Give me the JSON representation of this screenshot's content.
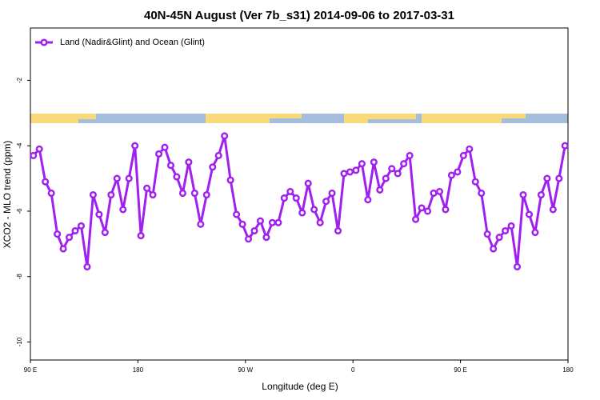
{
  "chart_data": {
    "type": "line",
    "title": "40N-45N August (Ver 7b_s31)   2014-09-06 to 2017-03-31",
    "xlabel": "Longitude (deg E)",
    "ylabel": "XCO2 - MLO trend (ppm)",
    "legend": "upper left",
    "xlim": [
      90,
      540
    ],
    "ylim": [
      -10.55,
      -0.4
    ],
    "xticks": [
      {
        "value": 90,
        "label": "90 E"
      },
      180,
      {
        "value": 270,
        "label": "90 W"
      },
      {
        "value": 360,
        "label": "0"
      },
      {
        "value": 450,
        "label": "90 E"
      },
      {
        "value": 540,
        "label": "180"
      }
    ],
    "yticks": [
      -2,
      -4,
      -6,
      -8,
      -10
    ],
    "x": [
      92.5,
      97.5,
      102.5,
      107.5,
      112.5,
      117.5,
      122.5,
      127.5,
      132.5,
      137.5,
      142.5,
      147.5,
      152.5,
      157.5,
      162.5,
      167.5,
      172.5,
      177.5,
      182.5,
      187.5,
      192.5,
      197.5,
      202.5,
      207.5,
      212.5,
      217.5,
      222.5,
      227.5,
      232.5,
      237.5,
      242.5,
      247.5,
      252.5,
      257.5,
      262.5,
      267.5,
      272.5,
      277.5,
      282.5,
      287.5,
      292.5,
      297.5,
      302.5,
      307.5,
      312.5,
      317.5,
      322.5,
      327.5,
      332.5,
      337.5,
      342.5,
      347.5,
      352.5,
      357.5,
      362.5,
      367.5,
      372.5,
      377.5,
      382.5,
      387.5,
      392.5,
      397.5,
      402.5,
      407.5,
      412.5,
      417.5,
      422.5,
      427.5,
      432.5,
      437.5,
      442.5,
      447.5,
      452.5,
      457.5,
      462.5,
      467.5,
      472.5,
      477.5,
      482.5,
      487.5,
      492.5,
      497.5,
      502.5,
      507.5,
      512.5,
      517.5,
      522.5,
      527.5,
      532.5,
      537.5
    ],
    "series": [
      {
        "name": "Land (Nadir&Glint) and Ocean (Glint)",
        "color": "#a020f0",
        "values": [
          -4.3,
          -4.1,
          -5.1,
          -5.45,
          -6.7,
          -7.15,
          -6.8,
          -6.6,
          -6.45,
          -7.7,
          -5.5,
          -6.1,
          -6.65,
          -5.5,
          -5.0,
          -5.95,
          -5.0,
          -4.0,
          -6.75,
          -5.3,
          -5.5,
          -4.25,
          -4.05,
          -4.6,
          -4.95,
          -5.45,
          -4.5,
          -5.45,
          -6.4,
          -5.5,
          -4.65,
          -4.3,
          -3.7,
          -5.05,
          -6.1,
          -6.4,
          -6.85,
          -6.6,
          -6.3,
          -6.8,
          -6.35,
          -6.35,
          -5.6,
          -5.4,
          -5.6,
          -6.05,
          -5.15,
          -5.95,
          -6.35,
          -5.7,
          -5.45,
          -6.6,
          -4.85,
          -4.8,
          -4.75,
          -4.55,
          -5.65,
          -4.5,
          -5.35,
          -5.0,
          -4.7,
          -4.85,
          -4.55,
          -4.3,
          -6.25,
          -5.9,
          -6.0,
          -5.45,
          -5.4,
          -5.95,
          -4.9,
          -4.8,
          -4.3,
          -4.1,
          -5.1,
          -5.45,
          -6.7,
          -7.15,
          -6.8,
          -6.6,
          -6.45,
          -7.7,
          -5.5,
          -6.1,
          -6.65,
          -5.5,
          -5.0,
          -5.95,
          -5.0,
          -4.0
        ]
      }
    ]
  }
}
